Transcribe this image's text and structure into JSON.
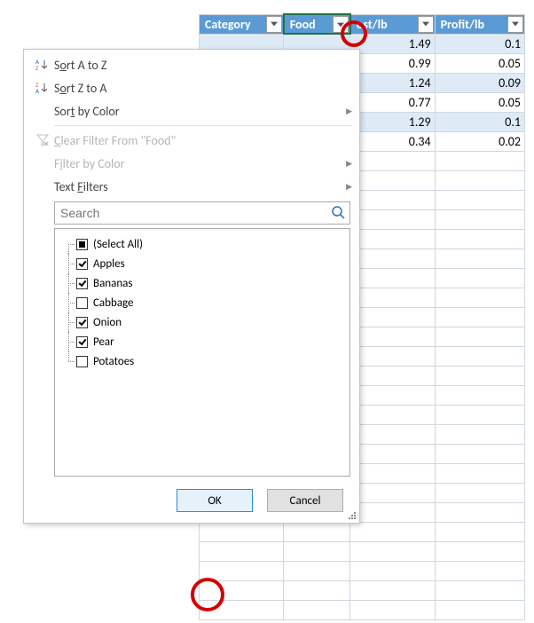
{
  "headers": {
    "category": "Category",
    "food": "Food",
    "cost": "ost/lb",
    "profit": "Profit/lb"
  },
  "rows": [
    {
      "cost": "1.49",
      "profit": "0.1",
      "band": true
    },
    {
      "cost": "0.99",
      "profit": "0.05",
      "band": false
    },
    {
      "cost": "1.24",
      "profit": "0.09",
      "band": true
    },
    {
      "cost": "0.77",
      "profit": "0.05",
      "band": false
    },
    {
      "cost": "1.29",
      "profit": "0.1",
      "band": true
    },
    {
      "cost": "0.34",
      "profit": "0.02",
      "band": false
    }
  ],
  "menu": {
    "sort_az_pre": "S",
    "sort_az_u": "o",
    "sort_az_post": "rt A to Z",
    "sort_za_pre": "S",
    "sort_za_u": "o",
    "sort_za_post": "rt Z to A",
    "sort_color_pre": "Sor",
    "sort_color_u": "t",
    "sort_color_post": " by Color",
    "clear_pre": "",
    "clear_u": "C",
    "clear_post": "lear Filter From \"Food\"",
    "filter_color_pre": "F",
    "filter_color_u": "i",
    "filter_color_post": "lter by Color",
    "text_filters_pre": "Text ",
    "text_filters_u": "F",
    "text_filters_post": "ilters",
    "search_placeholder": "Search",
    "ok": "OK",
    "cancel": "Cancel"
  },
  "filter_items": [
    {
      "label": "(Select All)",
      "state": "mixed"
    },
    {
      "label": "Apples",
      "state": "checked"
    },
    {
      "label": "Bananas",
      "state": "checked"
    },
    {
      "label": "Cabbage",
      "state": "unchecked"
    },
    {
      "label": "Onion",
      "state": "checked"
    },
    {
      "label": "Pear",
      "state": "checked"
    },
    {
      "label": "Potatoes",
      "state": "unchecked"
    }
  ],
  "colors": {
    "header_bg": "#5b9bd5",
    "band_bg": "#deebf7",
    "selected_border": "#217346",
    "annotation": "#d40000"
  }
}
